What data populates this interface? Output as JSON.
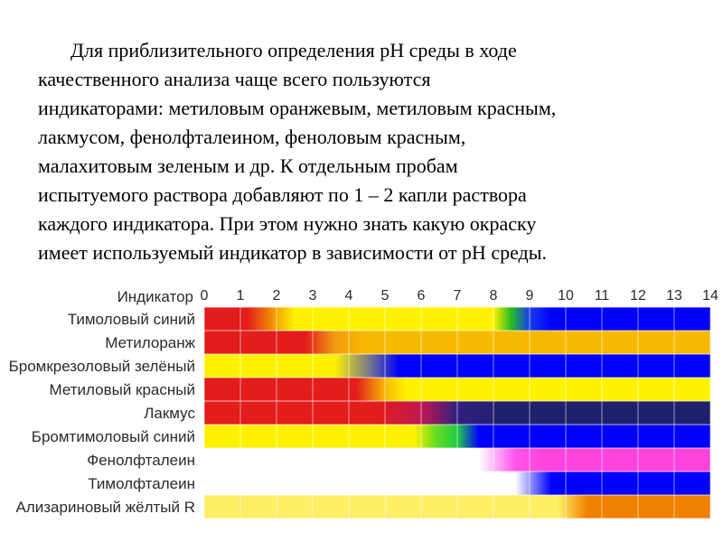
{
  "paragraph_lines": [
    "Для приблизительного определения pH среды в ходе",
    "качественного анализа чаще всего пользуются",
    "индикаторами: метиловым оранжевым, метиловым красным,",
    "лакмусом, фенолфталеином, феноловым красным,",
    "малахитовым зеленым и др. К отдельным пробам",
    "испытуемого раствора добавляют по 1 – 2 капли раствора",
    "каждого индикатора. При этом нужно знать какую окраску",
    "имеет используемый индикатор в зависимости от pH среды."
  ],
  "chart_data": {
    "type": "heatmap",
    "header_label": "Индикатор",
    "ph_ticks": [
      "0",
      "1",
      "2",
      "3",
      "4",
      "5",
      "6",
      "7",
      "8",
      "9",
      "10",
      "11",
      "12",
      "13",
      "14"
    ],
    "xlim": [
      0,
      14
    ],
    "grid": true,
    "indicators": [
      {
        "name": "Тимоловый синий",
        "stops": [
          [
            0,
            "#e31c1c"
          ],
          [
            1.2,
            "#e31c1c"
          ],
          [
            2.0,
            "#f7a400"
          ],
          [
            2.5,
            "#fff200"
          ],
          [
            8.0,
            "#fff200"
          ],
          [
            8.5,
            "#22bb22"
          ],
          [
            9.0,
            "#1a3cf0"
          ],
          [
            9.6,
            "#0000ff"
          ],
          [
            14,
            "#0000ff"
          ]
        ]
      },
      {
        "name": "Метилоранж",
        "stops": [
          [
            0,
            "#e31c1c"
          ],
          [
            2.8,
            "#e31c1c"
          ],
          [
            3.6,
            "#f39a10"
          ],
          [
            4.4,
            "#f7b800"
          ],
          [
            14,
            "#f7b800"
          ]
        ]
      },
      {
        "name": "Бромкрезоловый зелёный",
        "stops": [
          [
            0,
            "#fff200"
          ],
          [
            3.6,
            "#fff200"
          ],
          [
            4.5,
            "#808080"
          ],
          [
            5.4,
            "#0000ff"
          ],
          [
            14,
            "#0000ff"
          ]
        ]
      },
      {
        "name": "Метиловый красный",
        "stops": [
          [
            0,
            "#e31c1c"
          ],
          [
            4.2,
            "#e31c1c"
          ],
          [
            5.0,
            "#f7b800"
          ],
          [
            5.6,
            "#fff200"
          ],
          [
            14,
            "#fff200"
          ]
        ]
      },
      {
        "name": "Лакмус",
        "stops": [
          [
            0,
            "#e31c1c"
          ],
          [
            4.8,
            "#e31c1c"
          ],
          [
            6.0,
            "#c01850"
          ],
          [
            7.0,
            "#302080"
          ],
          [
            8.2,
            "#20206e"
          ],
          [
            14,
            "#20206e"
          ]
        ]
      },
      {
        "name": "Бромтимоловый синий",
        "stops": [
          [
            0,
            "#fff200"
          ],
          [
            5.8,
            "#fff200"
          ],
          [
            6.4,
            "#66dd22"
          ],
          [
            7.0,
            "#22cc44"
          ],
          [
            7.6,
            "#0000ff"
          ],
          [
            14,
            "#0000ff"
          ]
        ]
      },
      {
        "name": "Фенолфталеин",
        "stops": [
          [
            0,
            "#ffffff"
          ],
          [
            7.6,
            "#ffffff"
          ],
          [
            8.6,
            "#ff55ee"
          ],
          [
            9.4,
            "#ff44dd"
          ],
          [
            14,
            "#ff44dd"
          ]
        ]
      },
      {
        "name": "Тимолфталеин",
        "stops": [
          [
            0,
            "#ffffff"
          ],
          [
            8.6,
            "#ffffff"
          ],
          [
            9.6,
            "#0000ff"
          ],
          [
            14,
            "#0000ff"
          ]
        ]
      },
      {
        "name": "Ализариновый жёлтый R",
        "stops": [
          [
            0,
            "#ffee66"
          ],
          [
            9.8,
            "#ffee66"
          ],
          [
            10.6,
            "#f08000"
          ],
          [
            14,
            "#f08000"
          ]
        ]
      }
    ]
  }
}
